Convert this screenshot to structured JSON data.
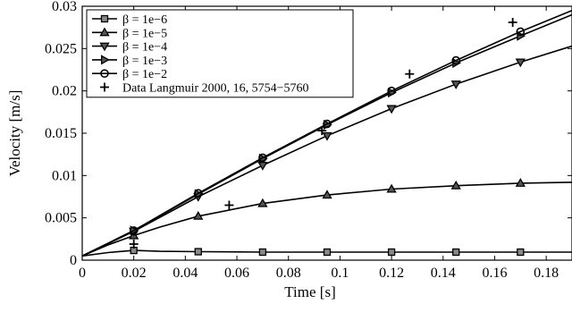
{
  "chart_data": {
    "type": "line",
    "xlabel": "Time [s]",
    "ylabel": "Velocity [m/s]",
    "xlim": [
      0,
      0.19
    ],
    "ylim": [
      0,
      0.03
    ],
    "xticks": [
      0,
      0.02,
      0.04,
      0.06,
      0.08,
      0.1,
      0.12,
      0.14,
      0.16,
      0.18
    ],
    "xtick_labels": [
      "0",
      "0.02",
      "0.04",
      "0.06",
      "0.08",
      "0.1",
      "0.12",
      "0.14",
      "0.16",
      "0.18"
    ],
    "yticks": [
      0,
      0.005,
      0.01,
      0.015,
      0.02,
      0.025,
      0.03
    ],
    "ytick_labels": [
      "0",
      "0.005",
      "0.01",
      "0.015",
      "0.02",
      "0.025",
      "0.03"
    ],
    "grid": false,
    "legend_position": "top-left",
    "series": [
      {
        "name": "β = 1e−6",
        "marker": "square",
        "line": true,
        "curve_x": [
          0,
          0.01,
          0.02,
          0.03,
          0.045,
          0.07,
          0.095,
          0.12,
          0.145,
          0.17,
          0.19
        ],
        "curve_y": [
          0.0005,
          0.0009,
          0.00115,
          0.00105,
          0.001,
          0.00095,
          0.00095,
          0.00095,
          0.00095,
          0.00095,
          0.00095
        ],
        "x": [
          0.02,
          0.045,
          0.07,
          0.095,
          0.12,
          0.145,
          0.17
        ],
        "y": [
          0.00115,
          0.001,
          0.00095,
          0.00095,
          0.00095,
          0.00095,
          0.00095
        ]
      },
      {
        "name": "β = 1e−5",
        "marker": "triangle-up",
        "line": true,
        "curve_x": [
          0,
          0.01,
          0.02,
          0.03,
          0.045,
          0.07,
          0.095,
          0.12,
          0.145,
          0.17,
          0.19
        ],
        "curve_y": [
          0.0005,
          0.0018,
          0.0029,
          0.0039,
          0.0052,
          0.0067,
          0.0077,
          0.0084,
          0.0088,
          0.0091,
          0.0092
        ],
        "x": [
          0.02,
          0.045,
          0.07,
          0.095,
          0.12,
          0.145,
          0.17
        ],
        "y": [
          0.0029,
          0.0052,
          0.0067,
          0.0077,
          0.0084,
          0.0088,
          0.0091
        ]
      },
      {
        "name": "β = 1e−4",
        "marker": "triangle-down",
        "line": true,
        "curve_x": [
          0,
          0.02,
          0.045,
          0.07,
          0.095,
          0.12,
          0.145,
          0.17,
          0.19
        ],
        "curve_y": [
          0.0005,
          0.0034,
          0.0075,
          0.0112,
          0.0147,
          0.0179,
          0.0208,
          0.0234,
          0.0253
        ],
        "x": [
          0.02,
          0.045,
          0.07,
          0.095,
          0.12,
          0.145,
          0.17
        ],
        "y": [
          0.0034,
          0.0075,
          0.0112,
          0.0147,
          0.0179,
          0.0208,
          0.0234
        ]
      },
      {
        "name": "β = 1e−3",
        "marker": "triangle-right",
        "line": true,
        "curve_x": [
          0,
          0.02,
          0.045,
          0.07,
          0.095,
          0.12,
          0.145,
          0.17,
          0.19
        ],
        "curve_y": [
          0.0005,
          0.0035,
          0.0078,
          0.012,
          0.016,
          0.0198,
          0.0233,
          0.0265,
          0.029
        ],
        "x": [
          0.02,
          0.045,
          0.07,
          0.095,
          0.12,
          0.145,
          0.17
        ],
        "y": [
          0.0035,
          0.0078,
          0.012,
          0.016,
          0.0198,
          0.0233,
          0.0265
        ]
      },
      {
        "name": "β = 1e−2",
        "marker": "circle",
        "line": true,
        "curve_x": [
          0,
          0.02,
          0.045,
          0.07,
          0.095,
          0.12,
          0.145,
          0.17,
          0.19
        ],
        "curve_y": [
          0.0005,
          0.0035,
          0.0079,
          0.0121,
          0.0161,
          0.02,
          0.0236,
          0.027,
          0.0295
        ],
        "x": [
          0.02,
          0.045,
          0.07,
          0.095,
          0.12,
          0.145,
          0.17
        ],
        "y": [
          0.0035,
          0.0079,
          0.0121,
          0.0161,
          0.02,
          0.0236,
          0.027
        ]
      },
      {
        "name": "Data Langmuir 2000, 16, 5754−5760",
        "marker": "plus",
        "line": false,
        "x": [
          0.02,
          0.057,
          0.093,
          0.127,
          0.167
        ],
        "y": [
          0.0019,
          0.0065,
          0.0153,
          0.022,
          0.0281
        ]
      }
    ]
  }
}
